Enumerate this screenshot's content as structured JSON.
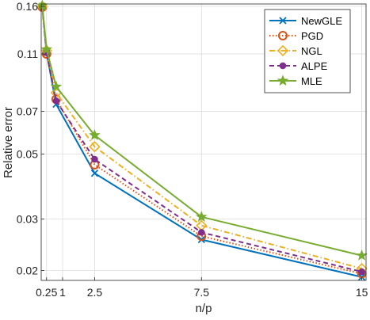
{
  "chart_data": {
    "type": "line",
    "xlabel": "n/p",
    "ylabel": "Relative error",
    "y_scale": "log",
    "ylim": [
      0.0185,
      0.163
    ],
    "xlim": [
      0,
      15.2
    ],
    "grid": true,
    "legend_position": "top-right",
    "xticks": [
      {
        "value": 0.25,
        "label": "0.25"
      },
      {
        "value": 1,
        "label": "1"
      },
      {
        "value": 2.5,
        "label": "2.5"
      },
      {
        "value": 7.5,
        "label": "7.5"
      },
      {
        "value": 15,
        "label": "15"
      }
    ],
    "yticks": [
      {
        "value": 0.16,
        "label": "0.16"
      },
      {
        "value": 0.11,
        "label": "0.11"
      },
      {
        "value": 0.07,
        "label": "0.07"
      },
      {
        "value": 0.05,
        "label": "0.05"
      },
      {
        "value": 0.03,
        "label": "0.03"
      },
      {
        "value": 0.02,
        "label": "0.02"
      }
    ],
    "x": [
      0.05,
      0.25,
      0.7,
      2.5,
      7.5,
      15
    ],
    "series": [
      {
        "name": "NewGLE",
        "color": "#0072BD",
        "dash": "solid",
        "marker": "x",
        "values": [
          0.16,
          0.111,
          0.074,
          0.043,
          0.0255,
          0.019
        ]
      },
      {
        "name": "PGD",
        "color": "#D95319",
        "dash": "dotted",
        "marker": "circle",
        "values": [
          0.159,
          0.11,
          0.077,
          0.046,
          0.0262,
          0.0195
        ]
      },
      {
        "name": "NGL",
        "color": "#EDB120",
        "dash": "dashdot",
        "marker": "diamond",
        "values": [
          0.16,
          0.113,
          0.081,
          0.053,
          0.0285,
          0.0203
        ]
      },
      {
        "name": "ALPE",
        "color": "#7E2F8E",
        "dash": "dashed",
        "marker": "dot",
        "values": [
          0.159,
          0.111,
          0.076,
          0.048,
          0.027,
          0.0198
        ]
      },
      {
        "name": "MLE",
        "color": "#77AC30",
        "dash": "solid",
        "marker": "star",
        "values": [
          0.161,
          0.114,
          0.085,
          0.058,
          0.0305,
          0.0225
        ]
      }
    ]
  }
}
